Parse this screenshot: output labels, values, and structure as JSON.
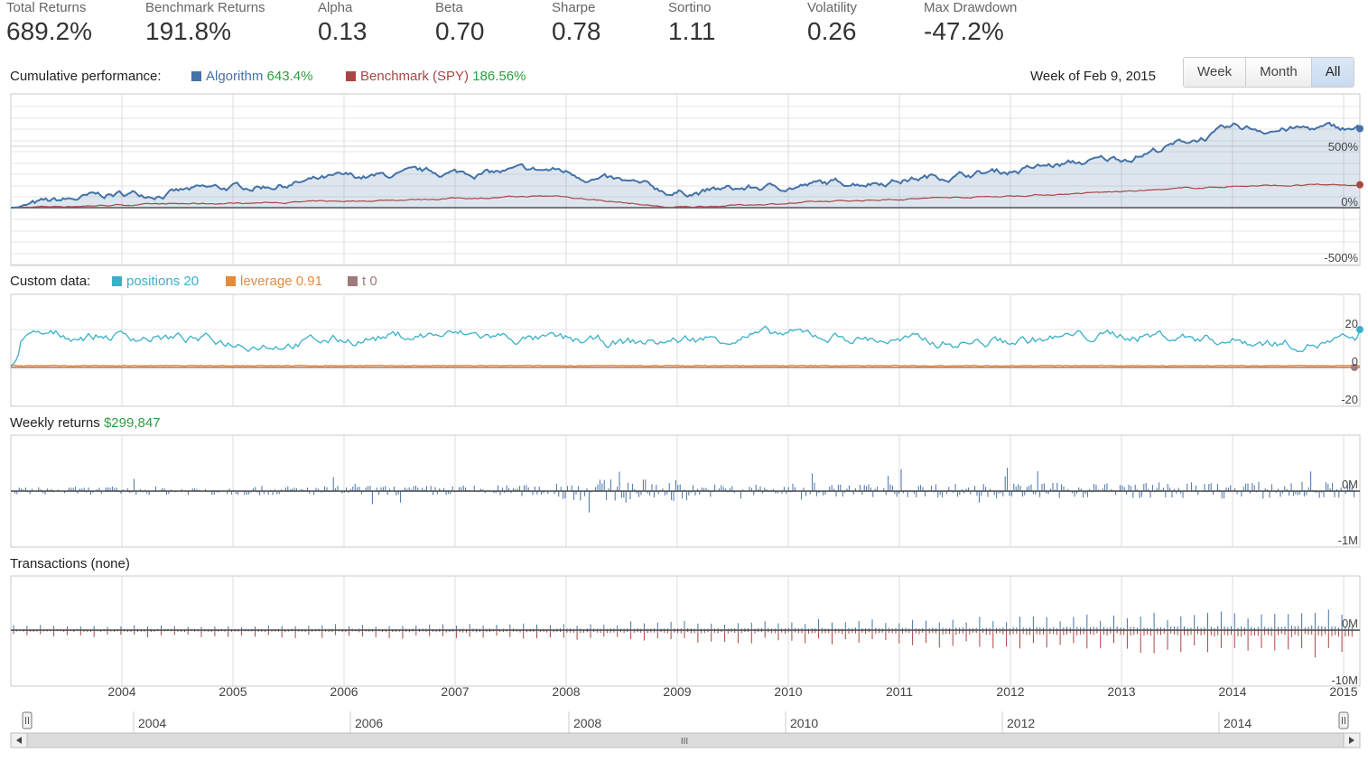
{
  "stats": [
    {
      "label": "Total Returns",
      "value": "689.2%"
    },
    {
      "label": "Benchmark Returns",
      "value": "191.8%"
    },
    {
      "label": "Alpha",
      "value": "0.13"
    },
    {
      "label": "Beta",
      "value": "0.70"
    },
    {
      "label": "Sharpe",
      "value": "0.78"
    },
    {
      "label": "Sortino",
      "value": "1.11"
    },
    {
      "label": "Volatility",
      "value": "0.26"
    },
    {
      "label": "Max Drawdown",
      "value": "-47.2%"
    }
  ],
  "cumulative": {
    "title": "Cumulative performance:",
    "algo_label": "Algorithm",
    "algo_value": "643.4%",
    "bench_label": "Benchmark (SPY)",
    "bench_value": "186.56%",
    "week_label": "Week of Feb 9, 2015",
    "range_buttons": [
      "Week",
      "Month",
      "All"
    ],
    "active_range": "All",
    "y_ticks": [
      "500%",
      "0%",
      "-500%"
    ]
  },
  "custom": {
    "title": "Custom data:",
    "series": [
      {
        "name": "positions",
        "value": "20"
      },
      {
        "name": "leverage",
        "value": "0.91"
      },
      {
        "name": "t",
        "value": "0"
      }
    ],
    "y_ticks": [
      "20",
      "0",
      "-20"
    ]
  },
  "weekly": {
    "title": "Weekly returns",
    "value": "$299,847",
    "y_ticks": [
      "0M",
      "-1M"
    ]
  },
  "transactions": {
    "title": "Transactions (none)",
    "y_ticks": [
      "0M",
      "-10M"
    ]
  },
  "x_years": [
    "2004",
    "2005",
    "2006",
    "2007",
    "2008",
    "2009",
    "2010",
    "2011",
    "2012",
    "2013",
    "2014",
    "2015"
  ],
  "navigator_years": [
    "2004",
    "2006",
    "2008",
    "2010",
    "2012",
    "2014"
  ],
  "scroll_grip": "III",
  "colors": {
    "algo": "#4572a7",
    "bench": "#aa4643",
    "positions": "#3ab0c9",
    "leverage": "#e58b3c",
    "t": "#a07a7a",
    "green": "#2e9e3e",
    "buy": "#4572a7",
    "sell": "#aa4643"
  },
  "chart_data": [
    {
      "type": "line",
      "title": "Cumulative performance",
      "x": [
        "2003",
        "2004",
        "2005",
        "2006",
        "2007",
        "2008",
        "2009",
        "2010",
        "2011",
        "2012",
        "2013",
        "2014",
        "2015"
      ],
      "series": [
        {
          "name": "Algorithm",
          "values": [
            0,
            100,
            150,
            230,
            280,
            300,
            120,
            170,
            230,
            300,
            400,
            640,
            643.4
          ]
        },
        {
          "name": "Benchmark (SPY)",
          "values": [
            0,
            20,
            35,
            50,
            75,
            95,
            0,
            35,
            70,
            95,
            130,
            175,
            186.56
          ]
        }
      ],
      "ylim": [
        -500,
        800
      ]
    },
    {
      "type": "line",
      "title": "Custom data",
      "x": [
        "2003",
        "2015"
      ],
      "series": [
        {
          "name": "positions",
          "values": [
            0,
            20
          ]
        },
        {
          "name": "leverage",
          "values": [
            0,
            0.91
          ]
        },
        {
          "name": "t",
          "values": [
            0,
            0
          ]
        }
      ],
      "ylim": [
        -20,
        20
      ]
    },
    {
      "type": "bar",
      "title": "Weekly returns",
      "ylim": [
        -1,
        1
      ]
    },
    {
      "type": "bar",
      "title": "Transactions (none)",
      "ylim": [
        -10,
        10
      ]
    }
  ]
}
